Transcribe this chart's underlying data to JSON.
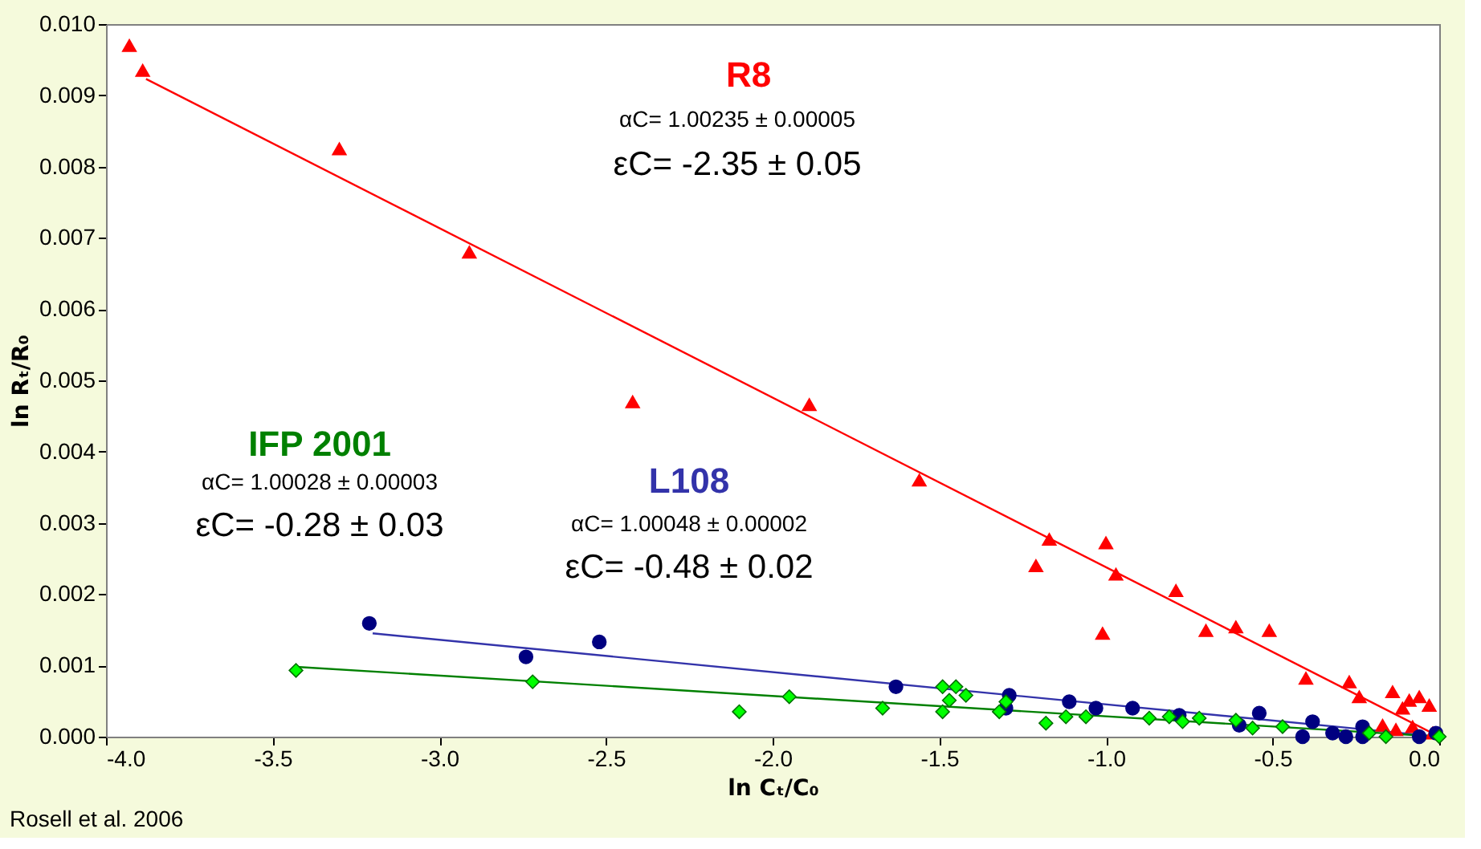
{
  "chart_data": {
    "type": "scatter",
    "xlabel": "ln Cₜ/C₀",
    "ylabel": "ln Rₜ/R₀",
    "xlim": [
      -4.0,
      0.0
    ],
    "ylim": [
      0,
      0.01
    ],
    "xticks": [
      {
        "value": -4,
        "label": "-4.0"
      },
      {
        "value": -3.5,
        "label": "-3.5"
      },
      {
        "value": -3,
        "label": "-3.0"
      },
      {
        "value": -2.5,
        "label": "-2.5"
      },
      {
        "value": -2,
        "label": "-2.0"
      },
      {
        "value": -1.5,
        "label": "-1.5"
      },
      {
        "value": -1,
        "label": "-1.0"
      },
      {
        "value": -0.5,
        "label": "-0.5"
      },
      {
        "value": 0,
        "label": "0.0"
      }
    ],
    "yticks": [
      {
        "value": 0,
        "label": "0.000"
      },
      {
        "value": 0.001,
        "label": "0.001"
      },
      {
        "value": 0.002,
        "label": "0.002"
      },
      {
        "value": 0.003,
        "label": "0.003"
      },
      {
        "value": 0.004,
        "label": "0.004"
      },
      {
        "value": 0.005,
        "label": "0.005"
      },
      {
        "value": 0.006,
        "label": "0.006"
      },
      {
        "value": 0.007,
        "label": "0.007"
      },
      {
        "value": 0.008,
        "label": "0.008"
      },
      {
        "value": 0.009,
        "label": "0.009"
      },
      {
        "value": 0.01,
        "label": "0.010"
      }
    ],
    "grid": false,
    "series": [
      {
        "type": "line",
        "color": "#ff0000",
        "x": [
          -3.88,
          0.0
        ],
        "values": [
          0.00923,
          0.0
        ]
      },
      {
        "type": "line",
        "color": "#3333aa",
        "x": [
          -3.2,
          0.0
        ],
        "values": [
          0.00145,
          0.0
        ]
      },
      {
        "type": "line",
        "color": "#008000",
        "x": [
          -3.43,
          0.0
        ],
        "values": [
          0.00098,
          0.0
        ]
      },
      {
        "type": "scatter",
        "marker": "triangle",
        "color": "#ff0000",
        "x": [
          -3.93,
          -3.89,
          -3.3,
          -2.91,
          -2.42,
          -1.89,
          -1.56,
          -1.17,
          -1.21,
          -1.0,
          -0.97,
          -1.01,
          -0.79,
          -0.7,
          -0.61,
          -0.51,
          -0.4,
          -0.27,
          -0.24,
          -0.14,
          -0.11,
          -0.09,
          -0.06,
          -0.03,
          -0.17,
          -0.13,
          -0.08,
          -0.02
        ],
        "values": [
          0.0097,
          0.00935,
          0.00825,
          0.0068,
          0.0047,
          0.00466,
          0.0036,
          0.00277,
          0.0024,
          0.00272,
          0.00228,
          0.00145,
          0.00205,
          0.00149,
          0.00154,
          0.00149,
          0.00082,
          0.00077,
          0.00056,
          0.00063,
          0.0004,
          0.00051,
          0.00056,
          0.00044,
          0.00016,
          0.0001,
          0.00014,
          5e-05
        ]
      },
      {
        "type": "scatter",
        "marker": "circle",
        "color": "#000080",
        "x": [
          -3.21,
          -2.74,
          -2.52,
          -1.63,
          -1.29,
          -1.3,
          -1.11,
          -1.03,
          -0.92,
          -0.78,
          -0.6,
          -0.54,
          -0.38,
          -0.41,
          -0.32,
          -0.28,
          -0.23,
          -0.23,
          -0.06,
          -0.01
        ],
        "values": [
          0.00159,
          0.00112,
          0.00133,
          0.0007,
          0.00058,
          0.0004,
          0.00049,
          0.0004,
          0.0004,
          0.0003,
          0.00016,
          0.00033,
          0.00021,
          0.0,
          5e-05,
          0.0,
          0.00014,
          0.0,
          0.0,
          5e-05
        ]
      },
      {
        "type": "scatter",
        "marker": "diamond",
        "color": "#00ff00",
        "x": [
          -3.43,
          -2.72,
          -2.1,
          -1.95,
          -1.67,
          -1.49,
          -1.45,
          -1.42,
          -1.47,
          -1.49,
          -1.32,
          -1.3,
          -1.18,
          -1.12,
          -1.06,
          -0.87,
          -0.81,
          -0.77,
          -0.72,
          -0.61,
          -0.56,
          -0.47,
          -0.21,
          -0.16,
          0.0
        ],
        "values": [
          0.00093,
          0.00077,
          0.00035,
          0.00056,
          0.0004,
          0.0007,
          0.0007,
          0.00058,
          0.00051,
          0.00035,
          0.00035,
          0.00049,
          0.00019,
          0.00028,
          0.00028,
          0.00026,
          0.00028,
          0.00021,
          0.00026,
          0.00023,
          0.00012,
          0.00014,
          5e-05,
          0.0,
          0.0
        ]
      }
    ],
    "annotations": [
      "R8",
      "αC= 1.00235 ± 0.00005",
      "εC= -2.35 ± 0.05",
      "IFP 2001",
      "αC= 1.00028 ± 0.00003",
      "εC= -0.28 ± 0.03",
      "L108",
      "αC= 1.00048 ± 0.00002",
      "εC= -0.48 ± 0.02",
      "Rosell et al. 2006"
    ]
  }
}
